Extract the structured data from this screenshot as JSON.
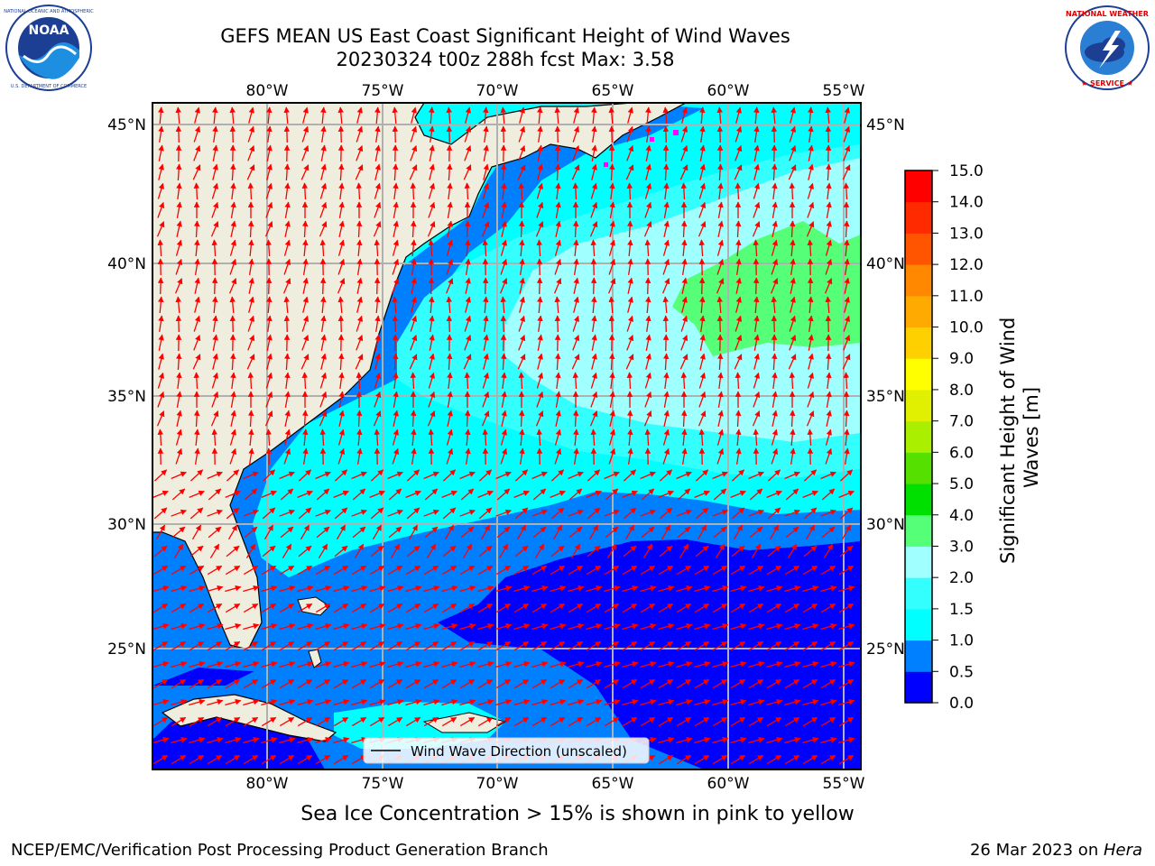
{
  "header": {
    "title_line1": "GEFS MEAN US East Coast Significant Height of Wind Waves",
    "title_line2": "20230324 t00z 288h fcst   Max: 3.58"
  },
  "logos": {
    "left": {
      "name": "NOAA",
      "ring_text": "NATIONAL OCEANIC AND ATMOSPHERIC ADMINISTRATION · U.S. DEPARTMENT OF COMMERCE"
    },
    "right": {
      "name": "NATIONAL WEATHER SERVICE"
    }
  },
  "map": {
    "lon_labels": [
      "80°W",
      "75°W",
      "70°W",
      "65°W",
      "60°W",
      "55°W"
    ],
    "lat_labels": [
      "45°N",
      "40°N",
      "35°N",
      "30°N",
      "25°N"
    ],
    "legend_label": "Wind Wave Direction (unscaled)",
    "arrow_color": "#ff0000",
    "land_color": "#efedde",
    "grid_color": "#b0b0b0"
  },
  "colorbar": {
    "label": "Significant Height of Wind Waves [m]",
    "ticks": [
      "0.0",
      "0.5",
      "1.0",
      "1.5",
      "2.0",
      "3.0",
      "4.0",
      "5.0",
      "6.0",
      "7.0",
      "8.0",
      "9.0",
      "10.0",
      "11.0",
      "12.0",
      "13.0",
      "14.0",
      "15.0"
    ],
    "colors": [
      "#0000ff",
      "#0080ff",
      "#00ffff",
      "#33ffff",
      "#a0ffff",
      "#55ff77",
      "#00e000",
      "#55e000",
      "#aaee00",
      "#e0f000",
      "#ffff00",
      "#ffd000",
      "#ffaa00",
      "#ff8800",
      "#ff5500",
      "#ff2a00",
      "#ff0000"
    ]
  },
  "footer": {
    "subtitle": "Sea Ice Concentration > 15% is shown in pink to yellow",
    "credit": "NCEP/EMC/Verification Post Processing Product Generation Branch",
    "date": "26 Mar 2023 on ",
    "machine": "Hera"
  }
}
